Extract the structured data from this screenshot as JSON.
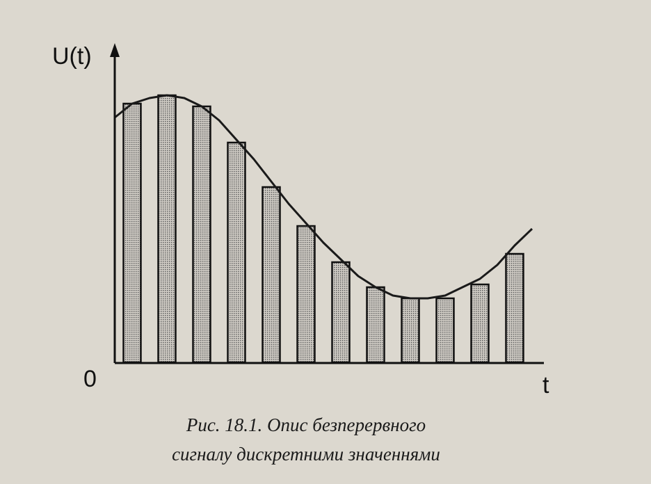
{
  "chart_data": {
    "type": "bar",
    "y_label": "U(t)",
    "x_label": "t",
    "origin_label": "0",
    "caption": [
      "Рис. 18.1. Опис безперервного",
      "сигналу дискретними значеннями"
    ],
    "categories": [
      null,
      null,
      null,
      null,
      null,
      null,
      null,
      null,
      null,
      null,
      null,
      null
    ],
    "values": [
      93,
      96,
      92,
      79,
      63,
      49,
      36,
      27,
      23,
      23,
      28,
      39
    ],
    "color": "#a9a59f",
    "curve": {
      "x": [
        0,
        0.5,
        1,
        1.5,
        2,
        2.5,
        3,
        3.5,
        4,
        4.5,
        5,
        5.5,
        6,
        6.5,
        7,
        7.5,
        8,
        8.5,
        9,
        9.5,
        10,
        10.5,
        11,
        11.5,
        12
      ],
      "y": [
        88,
        93,
        95,
        96,
        95,
        92,
        87,
        80,
        73,
        65,
        57,
        50,
        43,
        37,
        31,
        27,
        24,
        23,
        23,
        24,
        27,
        30,
        35,
        42,
        48
      ],
      "color": "#1a1a1a"
    },
    "xlim": [
      0,
      12.3
    ],
    "ylim": [
      0,
      110
    ]
  }
}
